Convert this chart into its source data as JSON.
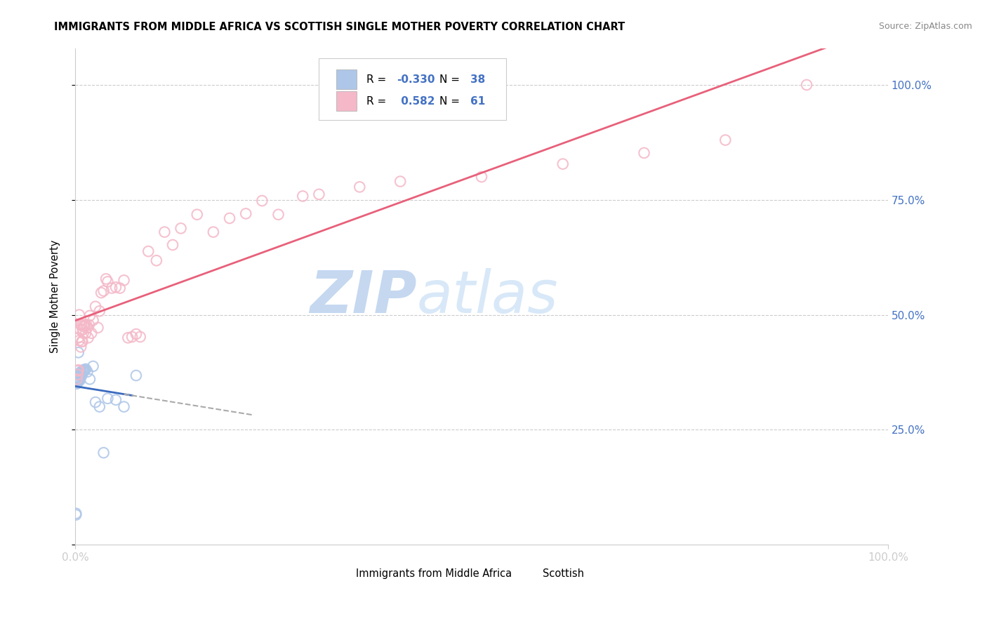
{
  "title": "IMMIGRANTS FROM MIDDLE AFRICA VS SCOTTISH SINGLE MOTHER POVERTY CORRELATION CHART",
  "source": "Source: ZipAtlas.com",
  "ylabel": "Single Mother Poverty",
  "legend_labels": [
    "Immigrants from Middle Africa",
    "Scottish"
  ],
  "R_blue": -0.33,
  "N_blue": 38,
  "R_pink": 0.582,
  "N_pink": 61,
  "blue_color": "#aec6e8",
  "pink_color": "#f4b8c8",
  "blue_line_color": "#3a6abf",
  "pink_line_color": "#e8607a",
  "watermark_zip_color": "#c5d8f0",
  "watermark_atlas_color": "#d8e8f8",
  "xlim": [
    0.0,
    1.0
  ],
  "ylim": [
    0.0,
    1.08
  ],
  "yticks": [
    0.0,
    0.25,
    0.5,
    0.75,
    1.0
  ],
  "background_color": "#ffffff",
  "blue_points_x": [
    0.001,
    0.001,
    0.002,
    0.002,
    0.002,
    0.003,
    0.003,
    0.003,
    0.003,
    0.004,
    0.004,
    0.004,
    0.005,
    0.005,
    0.005,
    0.006,
    0.006,
    0.007,
    0.007,
    0.007,
    0.008,
    0.008,
    0.009,
    0.01,
    0.01,
    0.011,
    0.012,
    0.013,
    0.015,
    0.018,
    0.022,
    0.025,
    0.03,
    0.035,
    0.04,
    0.05,
    0.06,
    0.075
  ],
  "blue_points_y": [
    0.065,
    0.068,
    0.35,
    0.355,
    0.358,
    0.352,
    0.356,
    0.358,
    0.362,
    0.36,
    0.364,
    0.418,
    0.358,
    0.362,
    0.372,
    0.358,
    0.366,
    0.366,
    0.372,
    0.376,
    0.368,
    0.372,
    0.375,
    0.376,
    0.38,
    0.378,
    0.38,
    0.382,
    0.376,
    0.36,
    0.388,
    0.31,
    0.3,
    0.2,
    0.318,
    0.315,
    0.3,
    0.368
  ],
  "pink_points_x": [
    0.002,
    0.003,
    0.003,
    0.004,
    0.004,
    0.005,
    0.005,
    0.006,
    0.007,
    0.007,
    0.008,
    0.008,
    0.009,
    0.009,
    0.01,
    0.01,
    0.011,
    0.012,
    0.013,
    0.014,
    0.015,
    0.016,
    0.017,
    0.018,
    0.02,
    0.022,
    0.025,
    0.028,
    0.03,
    0.032,
    0.035,
    0.038,
    0.04,
    0.045,
    0.05,
    0.055,
    0.06,
    0.065,
    0.07,
    0.075,
    0.08,
    0.09,
    0.1,
    0.11,
    0.12,
    0.13,
    0.15,
    0.17,
    0.19,
    0.21,
    0.23,
    0.25,
    0.28,
    0.3,
    0.35,
    0.4,
    0.5,
    0.6,
    0.7,
    0.8,
    0.9
  ],
  "pink_points_y": [
    0.36,
    0.37,
    0.378,
    0.38,
    0.45,
    0.444,
    0.5,
    0.468,
    0.43,
    0.478,
    0.442,
    0.478,
    0.442,
    0.468,
    0.46,
    0.478,
    0.474,
    0.478,
    0.46,
    0.478,
    0.472,
    0.45,
    0.478,
    0.498,
    0.46,
    0.488,
    0.518,
    0.472,
    0.508,
    0.548,
    0.552,
    0.578,
    0.572,
    0.558,
    0.56,
    0.558,
    0.575,
    0.45,
    0.452,
    0.458,
    0.452,
    0.638,
    0.618,
    0.68,
    0.652,
    0.688,
    0.718,
    0.68,
    0.71,
    0.72,
    0.748,
    0.718,
    0.758,
    0.762,
    0.778,
    0.79,
    0.8,
    0.828,
    0.852,
    0.88,
    1.0
  ]
}
